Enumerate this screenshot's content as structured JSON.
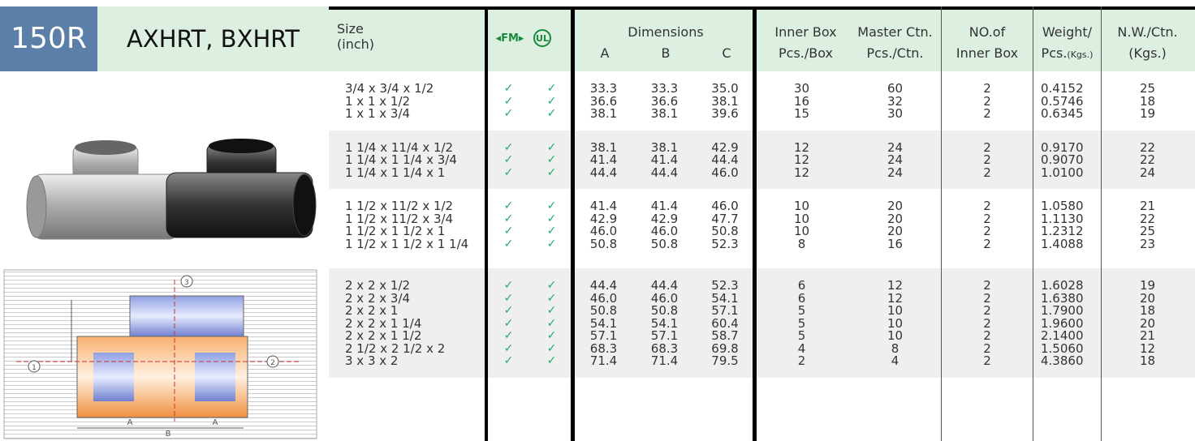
{
  "header": {
    "code": "150R",
    "model": "AXHRT, BXHRT"
  },
  "columns": {
    "size": [
      "Size",
      "(inch)"
    ],
    "fm": "FM",
    "ul": "UL",
    "dimensions": "Dimensions",
    "dims": [
      "A",
      "B",
      "C"
    ],
    "inner_box": [
      "Inner Box",
      "Pcs./Box"
    ],
    "master": [
      "Master Ctn.",
      "Pcs./Ctn."
    ],
    "no_inner": [
      "NO.of",
      "Inner Box"
    ],
    "weight": [
      "Weight/",
      "Pcs.",
      "(Kgs.)"
    ],
    "nw": [
      "N.W./Ctn.",
      "(Kgs.)"
    ]
  },
  "diagram": {
    "ports": [
      "1",
      "2",
      "3"
    ],
    "dims": [
      "A",
      "B",
      "A"
    ]
  },
  "table": {
    "groups": [
      {
        "rows": [
          [
            "3/4 x 3/4 x 1/2",
            "✓",
            "✓",
            "33.3",
            "33.3",
            "35.0",
            "30",
            "60",
            "2",
            "0.4152",
            "25"
          ],
          [
            "1 x 1 x 1/2",
            "✓",
            "✓",
            "36.6",
            "36.6",
            "38.1",
            "16",
            "32",
            "2",
            "0.5746",
            "18"
          ],
          [
            "1 x 1 x 3/4",
            "✓",
            "✓",
            "38.1",
            "38.1",
            "39.6",
            "15",
            "30",
            "2",
            "0.6345",
            "19"
          ]
        ]
      },
      {
        "rows": [
          [
            "1 1/4 x 11/4 x 1/2",
            "✓",
            "✓",
            "38.1",
            "38.1",
            "42.9",
            "12",
            "24",
            "2",
            "0.9170",
            "22"
          ],
          [
            "1 1/4 x 1 1/4 x 3/4",
            "✓",
            "✓",
            "41.4",
            "41.4",
            "44.4",
            "12",
            "24",
            "2",
            "0.9070",
            "22"
          ],
          [
            "1 1/4 x 1 1/4 x 1",
            "✓",
            "✓",
            "44.4",
            "44.4",
            "46.0",
            "12",
            "24",
            "2",
            "1.0100",
            "24"
          ]
        ]
      },
      {
        "rows": [
          [
            "1 1/2 x 11/2 x 1/2",
            "✓",
            "✓",
            "41.4",
            "41.4",
            "46.0",
            "10",
            "20",
            "2",
            "1.0580",
            "21"
          ],
          [
            "1 1/2 x 11/2 x 3/4",
            "✓",
            "✓",
            "42.9",
            "42.9",
            "47.7",
            "10",
            "20",
            "2",
            "1.1130",
            "22"
          ],
          [
            "1 1/2 x 1 1/2 x 1",
            "✓",
            "✓",
            "46.0",
            "46.0",
            "50.8",
            "10",
            "20",
            "2",
            "1.2312",
            "25"
          ],
          [
            "1 1/2 x 1 1/2 x 1 1/4",
            "✓",
            "✓",
            "50.8",
            "50.8",
            "52.3",
            "8",
            "16",
            "2",
            "1.4088",
            "23"
          ]
        ]
      },
      {
        "rows": [
          [
            "2 x 2 x 1/2",
            "✓",
            "✓",
            "44.4",
            "44.4",
            "52.3",
            "6",
            "12",
            "2",
            "1.6028",
            "19"
          ],
          [
            "2 x 2 x 3/4",
            "✓",
            "✓",
            "46.0",
            "46.0",
            "54.1",
            "6",
            "12",
            "2",
            "1.6380",
            "20"
          ],
          [
            "2 x 2 x 1",
            "✓",
            "✓",
            "50.8",
            "50.8",
            "57.1",
            "5",
            "10",
            "2",
            "1.7900",
            "18"
          ],
          [
            "2 x 2 x 1 1/4",
            "✓",
            "✓",
            "54.1",
            "54.1",
            "60.4",
            "5",
            "10",
            "2",
            "1.9600",
            "20"
          ],
          [
            "2 x 2 x 1 1/2",
            "✓",
            "✓",
            "57.1",
            "57.1",
            "58.7",
            "5",
            "10",
            "2",
            "2.1400",
            "21"
          ],
          [
            "2 1/2 x 2 1/2 x 2",
            "✓",
            "✓",
            "68.3",
            "68.3",
            "69.8",
            "4",
            "8",
            "2",
            "1.5060",
            "12"
          ],
          [
            "3 x 3 x 2",
            "✓",
            "✓",
            "71.4",
            "71.4",
            "79.5",
            "2",
            "4",
            "2",
            "4.3860",
            "18"
          ]
        ]
      }
    ]
  }
}
